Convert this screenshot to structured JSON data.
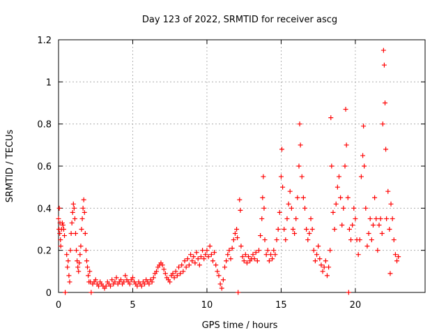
{
  "chart_data": {
    "type": "scatter",
    "title": "Day 123 of 2022, SRMTID for receiver ascg",
    "xlabel": "GPS time / hours",
    "ylabel": "SRMTID / TECUs",
    "xlim": [
      0,
      24.7
    ],
    "ylim": [
      0,
      1.2
    ],
    "xticks": [
      0,
      5,
      10,
      15,
      20
    ],
    "xtick_labels": [
      "0",
      "5",
      "10",
      "15",
      "20"
    ],
    "yticks": [
      0,
      0.2,
      0.4,
      0.6,
      0.8,
      1.0,
      1.2
    ],
    "ytick_labels": [
      "0",
      "0.2",
      "0.4",
      "0.6",
      "0.8",
      "1",
      "1.2"
    ],
    "grid": true,
    "marker": "plus",
    "color": "#ff0000",
    "series": [
      {
        "name": "SRMTID",
        "points": [
          [
            0.0,
            0.35
          ],
          [
            0.03,
            0.3
          ],
          [
            0.05,
            0.4
          ],
          [
            0.08,
            0.28
          ],
          [
            0.1,
            0.33
          ],
          [
            0.13,
            0.25
          ],
          [
            0.15,
            0.22
          ],
          [
            0.2,
            0.3
          ],
          [
            0.25,
            0.33
          ],
          [
            0.3,
            0.32
          ],
          [
            0.35,
            0.3
          ],
          [
            0.4,
            0.27
          ],
          [
            0.45,
            0.0
          ],
          [
            0.55,
            0.18
          ],
          [
            0.6,
            0.12
          ],
          [
            0.65,
            0.15
          ],
          [
            0.7,
            0.08
          ],
          [
            0.75,
            0.05
          ],
          [
            0.8,
            0.2
          ],
          [
            0.85,
            0.28
          ],
          [
            0.9,
            0.33
          ],
          [
            0.95,
            0.38
          ],
          [
            1.0,
            0.42
          ],
          [
            1.05,
            0.4
          ],
          [
            1.1,
            0.35
          ],
          [
            1.15,
            0.28
          ],
          [
            1.2,
            0.2
          ],
          [
            1.25,
            0.15
          ],
          [
            1.3,
            0.12
          ],
          [
            1.35,
            0.1
          ],
          [
            1.4,
            0.14
          ],
          [
            1.45,
            0.18
          ],
          [
            1.5,
            0.22
          ],
          [
            1.55,
            0.3
          ],
          [
            1.6,
            0.35
          ],
          [
            1.65,
            0.4
          ],
          [
            1.7,
            0.44
          ],
          [
            1.75,
            0.38
          ],
          [
            1.8,
            0.28
          ],
          [
            1.85,
            0.2
          ],
          [
            1.9,
            0.15
          ],
          [
            1.95,
            0.12
          ],
          [
            2.0,
            0.08
          ],
          [
            2.05,
            0.05
          ],
          [
            2.1,
            0.1
          ],
          [
            2.15,
            0.05
          ],
          [
            2.2,
            0.0
          ],
          [
            2.3,
            0.04
          ],
          [
            2.4,
            0.05
          ],
          [
            2.5,
            0.06
          ],
          [
            2.6,
            0.04
          ],
          [
            2.7,
            0.03
          ],
          [
            2.8,
            0.05
          ],
          [
            2.9,
            0.04
          ],
          [
            3.0,
            0.03
          ],
          [
            3.1,
            0.02
          ],
          [
            3.2,
            0.03
          ],
          [
            3.3,
            0.05
          ],
          [
            3.4,
            0.04
          ],
          [
            3.5,
            0.03
          ],
          [
            3.6,
            0.06
          ],
          [
            3.7,
            0.04
          ],
          [
            3.8,
            0.05
          ],
          [
            3.9,
            0.07
          ],
          [
            4.0,
            0.04
          ],
          [
            4.1,
            0.05
          ],
          [
            4.2,
            0.06
          ],
          [
            4.3,
            0.04
          ],
          [
            4.4,
            0.05
          ],
          [
            4.5,
            0.08
          ],
          [
            4.6,
            0.06
          ],
          [
            4.7,
            0.05
          ],
          [
            4.8,
            0.04
          ],
          [
            4.9,
            0.06
          ],
          [
            5.0,
            0.07
          ],
          [
            5.1,
            0.05
          ],
          [
            5.2,
            0.04
          ],
          [
            5.3,
            0.03
          ],
          [
            5.4,
            0.05
          ],
          [
            5.5,
            0.04
          ],
          [
            5.6,
            0.03
          ],
          [
            5.7,
            0.05
          ],
          [
            5.8,
            0.04
          ],
          [
            5.9,
            0.06
          ],
          [
            6.0,
            0.05
          ],
          [
            6.1,
            0.04
          ],
          [
            6.2,
            0.06
          ],
          [
            6.3,
            0.05
          ],
          [
            6.4,
            0.07
          ],
          [
            6.5,
            0.09
          ],
          [
            6.6,
            0.1
          ],
          [
            6.7,
            0.12
          ],
          [
            6.8,
            0.13
          ],
          [
            6.9,
            0.14
          ],
          [
            7.0,
            0.13
          ],
          [
            7.1,
            0.11
          ],
          [
            7.2,
            0.09
          ],
          [
            7.3,
            0.07
          ],
          [
            7.4,
            0.06
          ],
          [
            7.5,
            0.05
          ],
          [
            7.6,
            0.08
          ],
          [
            7.7,
            0.09
          ],
          [
            7.8,
            0.07
          ],
          [
            7.9,
            0.1
          ],
          [
            8.0,
            0.08
          ],
          [
            8.1,
            0.12
          ],
          [
            8.2,
            0.09
          ],
          [
            8.3,
            0.13
          ],
          [
            8.4,
            0.1
          ],
          [
            8.5,
            0.15
          ],
          [
            8.6,
            0.12
          ],
          [
            8.7,
            0.16
          ],
          [
            8.8,
            0.13
          ],
          [
            8.9,
            0.18
          ],
          [
            9.0,
            0.15
          ],
          [
            9.1,
            0.17
          ],
          [
            9.2,
            0.14
          ],
          [
            9.3,
            0.19
          ],
          [
            9.4,
            0.16
          ],
          [
            9.5,
            0.13
          ],
          [
            9.6,
            0.17
          ],
          [
            9.7,
            0.2
          ],
          [
            9.8,
            0.16
          ],
          [
            9.9,
            0.18
          ],
          [
            10.0,
            0.2
          ],
          [
            10.1,
            0.17
          ],
          [
            10.2,
            0.22
          ],
          [
            10.3,
            0.18
          ],
          [
            10.4,
            0.15
          ],
          [
            10.5,
            0.19
          ],
          [
            10.6,
            0.13
          ],
          [
            10.7,
            0.1
          ],
          [
            10.8,
            0.08
          ],
          [
            10.9,
            0.04
          ],
          [
            11.0,
            0.02
          ],
          [
            11.1,
            0.06
          ],
          [
            11.2,
            0.12
          ],
          [
            11.3,
            0.15
          ],
          [
            11.4,
            0.18
          ],
          [
            11.5,
            0.2
          ],
          [
            11.6,
            0.16
          ],
          [
            11.7,
            0.21
          ],
          [
            11.8,
            0.25
          ],
          [
            11.9,
            0.28
          ],
          [
            12.0,
            0.3
          ],
          [
            12.05,
            0.26
          ],
          [
            12.1,
            0.0
          ],
          [
            12.2,
            0.44
          ],
          [
            12.25,
            0.39
          ],
          [
            12.3,
            0.22
          ],
          [
            12.4,
            0.17
          ],
          [
            12.5,
            0.15
          ],
          [
            12.6,
            0.18
          ],
          [
            12.7,
            0.14
          ],
          [
            12.8,
            0.17
          ],
          [
            12.9,
            0.15
          ],
          [
            13.0,
            0.16
          ],
          [
            13.1,
            0.18
          ],
          [
            13.2,
            0.16
          ],
          [
            13.3,
            0.19
          ],
          [
            13.4,
            0.15
          ],
          [
            13.5,
            0.2
          ],
          [
            13.6,
            0.27
          ],
          [
            13.7,
            0.35
          ],
          [
            13.75,
            0.45
          ],
          [
            13.8,
            0.55
          ],
          [
            13.85,
            0.4
          ],
          [
            13.9,
            0.25
          ],
          [
            14.0,
            0.18
          ],
          [
            14.1,
            0.2
          ],
          [
            14.2,
            0.15
          ],
          [
            14.3,
            0.18
          ],
          [
            14.4,
            0.16
          ],
          [
            14.5,
            0.2
          ],
          [
            14.6,
            0.18
          ],
          [
            14.7,
            0.25
          ],
          [
            14.8,
            0.3
          ],
          [
            14.9,
            0.38
          ],
          [
            15.0,
            0.55
          ],
          [
            15.05,
            0.68
          ],
          [
            15.1,
            0.5
          ],
          [
            15.2,
            0.3
          ],
          [
            15.3,
            0.25
          ],
          [
            15.4,
            0.35
          ],
          [
            15.5,
            0.42
          ],
          [
            15.6,
            0.48
          ],
          [
            15.7,
            0.4
          ],
          [
            15.8,
            0.3
          ],
          [
            15.9,
            0.28
          ],
          [
            16.0,
            0.35
          ],
          [
            16.1,
            0.45
          ],
          [
            16.2,
            0.6
          ],
          [
            16.25,
            0.8
          ],
          [
            16.3,
            0.7
          ],
          [
            16.4,
            0.55
          ],
          [
            16.5,
            0.45
          ],
          [
            16.6,
            0.4
          ],
          [
            16.7,
            0.3
          ],
          [
            16.8,
            0.25
          ],
          [
            16.9,
            0.28
          ],
          [
            17.0,
            0.35
          ],
          [
            17.1,
            0.3
          ],
          [
            17.2,
            0.2
          ],
          [
            17.3,
            0.15
          ],
          [
            17.4,
            0.18
          ],
          [
            17.5,
            0.22
          ],
          [
            17.6,
            0.16
          ],
          [
            17.7,
            0.13
          ],
          [
            17.8,
            0.1
          ],
          [
            17.9,
            0.12
          ],
          [
            18.0,
            0.15
          ],
          [
            18.1,
            0.08
          ],
          [
            18.2,
            0.12
          ],
          [
            18.3,
            0.2
          ],
          [
            18.35,
            0.83
          ],
          [
            18.4,
            0.6
          ],
          [
            18.5,
            0.38
          ],
          [
            18.6,
            0.3
          ],
          [
            18.7,
            0.42
          ],
          [
            18.8,
            0.5
          ],
          [
            18.9,
            0.55
          ],
          [
            19.0,
            0.45
          ],
          [
            19.1,
            0.32
          ],
          [
            19.2,
            0.4
          ],
          [
            19.3,
            0.6
          ],
          [
            19.35,
            0.87
          ],
          [
            19.4,
            0.7
          ],
          [
            19.5,
            0.45
          ],
          [
            19.55,
            0.0
          ],
          [
            19.6,
            0.3
          ],
          [
            19.7,
            0.25
          ],
          [
            19.8,
            0.32
          ],
          [
            19.9,
            0.4
          ],
          [
            20.0,
            0.35
          ],
          [
            20.1,
            0.25
          ],
          [
            20.2,
            0.18
          ],
          [
            20.3,
            0.25
          ],
          [
            20.4,
            0.55
          ],
          [
            20.5,
            0.65
          ],
          [
            20.55,
            0.79
          ],
          [
            20.6,
            0.6
          ],
          [
            20.7,
            0.4
          ],
          [
            20.8,
            0.22
          ],
          [
            20.9,
            0.28
          ],
          [
            21.0,
            0.35
          ],
          [
            21.1,
            0.25
          ],
          [
            21.2,
            0.32
          ],
          [
            21.3,
            0.45
          ],
          [
            21.4,
            0.35
          ],
          [
            21.5,
            0.2
          ],
          [
            21.6,
            0.32
          ],
          [
            21.7,
            0.35
          ],
          [
            21.8,
            0.28
          ],
          [
            21.85,
            0.8
          ],
          [
            21.9,
            1.15
          ],
          [
            21.95,
            1.08
          ],
          [
            22.0,
            0.9
          ],
          [
            22.05,
            0.68
          ],
          [
            22.1,
            0.35
          ],
          [
            22.2,
            0.48
          ],
          [
            22.3,
            0.3
          ],
          [
            22.35,
            0.09
          ],
          [
            22.4,
            0.42
          ],
          [
            22.5,
            0.35
          ],
          [
            22.6,
            0.25
          ],
          [
            22.7,
            0.18
          ],
          [
            22.8,
            0.15
          ],
          [
            22.9,
            0.17
          ]
        ]
      }
    ]
  }
}
